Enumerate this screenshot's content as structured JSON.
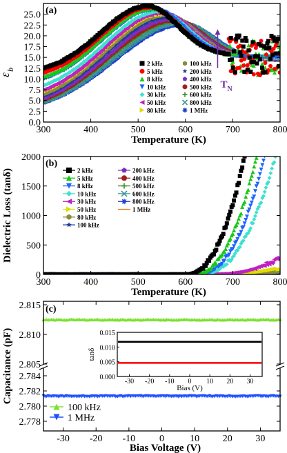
{
  "chart_data": [
    {
      "panel": "(a)",
      "type": "scatter",
      "xlabel": "Temperature (K)",
      "ylabel": "ε_b",
      "ylabel_main": "ε",
      "ylabel_sub": "b",
      "xlim": [
        300,
        800
      ],
      "ylim": [
        0,
        27.5
      ],
      "xticks": [
        300,
        400,
        500,
        600,
        700,
        800
      ],
      "yticks": [
        0.0,
        2.5,
        5.0,
        7.5,
        10.0,
        12.5,
        15.0,
        17.5,
        20.0,
        22.5,
        25.0
      ],
      "annotation": {
        "text": "T",
        "sub": "N",
        "x": 668,
        "arrow_from": 12.5,
        "arrow_to": 21.5,
        "color": "#7030a0"
      },
      "legend_position": "bottom-right",
      "series": [
        {
          "name": "2 kHz",
          "color": "#000000",
          "marker": "square",
          "start": 12.5,
          "peak": 26.9,
          "tpeak": 520,
          "w_low": 140,
          "high": 15.5
        },
        {
          "name": "5 kHz",
          "color": "#ff0000",
          "marker": "circle",
          "start": 11.5,
          "peak": 26.6,
          "tpeak": 525,
          "w_low": 145,
          "high": 15.3
        },
        {
          "name": "8 kHz",
          "color": "#19c819",
          "marker": "triangle-up",
          "start": 10.5,
          "peak": 26.3,
          "tpeak": 530,
          "w_low": 150,
          "high": 15.2
        },
        {
          "name": "10 kHz",
          "color": "#1e64ff",
          "marker": "triangle-down",
          "start": 10.0,
          "peak": 26.1,
          "tpeak": 535,
          "w_low": 155,
          "high": 15.1
        },
        {
          "name": "30 kHz",
          "color": "#40e0d0",
          "marker": "diamond",
          "start": 8.5,
          "peak": 25.6,
          "tpeak": 545,
          "w_low": 165,
          "high": 15.0
        },
        {
          "name": "50 kHz",
          "color": "#c020c0",
          "marker": "triangle-left",
          "start": 7.5,
          "peak": 25.3,
          "tpeak": 550,
          "w_low": 170,
          "high": 14.9
        },
        {
          "name": "80 kHz",
          "color": "#dddd00",
          "marker": "triangle-right",
          "start": 7.0,
          "peak": 25.0,
          "tpeak": 555,
          "w_low": 175,
          "high": 14.8
        },
        {
          "name": "100 kHz",
          "color": "#8b8b3a",
          "marker": "hexagon",
          "start": 6.5,
          "peak": 24.8,
          "tpeak": 560,
          "w_low": 180,
          "high": 14.8
        },
        {
          "name": "200 kHz",
          "color": "#1e3c96",
          "marker": "star",
          "start": 6.0,
          "peak": 24.3,
          "tpeak": 565,
          "w_low": 185,
          "high": 14.7
        },
        {
          "name": "400 kHz",
          "color": "#7b2fbf",
          "marker": "pentagon",
          "start": 5.5,
          "peak": 23.9,
          "tpeak": 572,
          "w_low": 190,
          "high": 14.6
        },
        {
          "name": "500 kHz",
          "color": "#a01e1e",
          "marker": "sphere",
          "start": 5.2,
          "peak": 23.6,
          "tpeak": 577,
          "w_low": 195,
          "high": 14.6
        },
        {
          "name": "600 kHz",
          "color": "#3c8c28",
          "marker": "plus",
          "start": 5.0,
          "peak": 23.4,
          "tpeak": 582,
          "w_low": 198,
          "high": 14.5
        },
        {
          "name": "800 kHz",
          "color": "#3c9696",
          "marker": "x",
          "start": 4.8,
          "peak": 23.0,
          "tpeak": 590,
          "w_low": 200,
          "high": 14.5
        },
        {
          "name": "1 MHz",
          "color": "#1e3cc8",
          "marker": "asterisk",
          "start": 4.5,
          "peak": 22.7,
          "tpeak": 598,
          "w_low": 205,
          "high": 14.4
        }
      ]
    },
    {
      "panel": "(b)",
      "type": "scatter",
      "xlabel": "Temperature (K)",
      "ylabel": "Dielectric Loss   (tanδ)",
      "xlim": [
        300,
        800
      ],
      "ylim": [
        0,
        2000
      ],
      "xticks": [
        300,
        400,
        500,
        600,
        700,
        800
      ],
      "yticks": [
        0,
        500,
        1000,
        1500,
        2000
      ],
      "legend_position": "top-left",
      "series": [
        {
          "name": "2 kHz",
          "color": "#000000",
          "marker": "square",
          "t0": 600,
          "t2000": 725
        },
        {
          "name": "5 kHz",
          "color": "#19c819",
          "marker": "triangle-up",
          "t0": 615,
          "t2000": 750
        },
        {
          "name": "8 kHz",
          "color": "#1e64ff",
          "marker": "triangle-down",
          "t0": 625,
          "t2000": 768
        },
        {
          "name": "10 kHz",
          "color": "#40e0d0",
          "marker": "diamond",
          "t0": 630,
          "t2000": 790
        },
        {
          "name": "30 kHz",
          "color": "#c020c0",
          "marker": "triangle-left",
          "t0": 650,
          "t2000": 1000
        },
        {
          "name": "50 kHz",
          "color": "#dddd00",
          "marker": "triangle-right",
          "t0": 660,
          "t2000": 1150
        },
        {
          "name": "80 kHz",
          "color": "#8b8b3a",
          "marker": "hexagon",
          "t0": 670,
          "t2000": 1300
        },
        {
          "name": "100 kHz",
          "color": "#1e3c96",
          "marker": "star",
          "t0": 675,
          "t2000": 1450
        },
        {
          "name": "200 kHz",
          "color": "#7b2fbf",
          "marker": "pentagon",
          "t0": 685,
          "t2000": 1700
        },
        {
          "name": "400 kHz",
          "color": "#a01e1e",
          "marker": "sphere",
          "t0": 695,
          "t2000": 2000
        },
        {
          "name": "500 kHz",
          "color": "#3c8c28",
          "marker": "plus",
          "t0": 700,
          "t2000": 2200
        },
        {
          "name": "600 kHz",
          "color": "#3c9696",
          "marker": "x",
          "t0": 705,
          "t2000": 2400
        },
        {
          "name": "800 kHz",
          "color": "#1e3cc8",
          "marker": "asterisk",
          "t0": 712,
          "t2000": 2700
        },
        {
          "name": "1 MHz",
          "color": "#e07000",
          "marker": "line",
          "t0": 720,
          "t2000": 3000
        }
      ]
    },
    {
      "panel": "(c)",
      "type": "scatter",
      "xlabel": "Bias Voltage (V)",
      "ylabel": "Capacitance (pF)",
      "xlim": [
        -36,
        36
      ],
      "xticks": [
        -30,
        -20,
        -10,
        0,
        10,
        20,
        30
      ],
      "upper_ylim": [
        2.805,
        2.815
      ],
      "upper_yticks": [
        2.805,
        2.81,
        2.815
      ],
      "lower_ylim": [
        2.777,
        2.785
      ],
      "lower_yticks": [
        2.778,
        2.78,
        2.782,
        2.784
      ],
      "legend_position": "bottom-left",
      "series": [
        {
          "name": "100 kHz",
          "color": "#7fe030",
          "marker": "triangle-up",
          "value": 2.8125
        },
        {
          "name": "1 MHz",
          "color": "#1e50ff",
          "marker": "triangle-down",
          "value": 2.7813
        }
      ],
      "inset": {
        "ylabel": "tanδ",
        "xlabel": "Bias (V)",
        "xlim": [
          -36,
          36
        ],
        "xticks": [
          -30,
          -20,
          -10,
          0,
          10,
          20,
          30
        ],
        "ylim": [
          0,
          0.015
        ],
        "yticks": [
          0.0,
          0.005,
          0.01,
          0.015
        ],
        "ytick_labels": [
          "0.000",
          "0.005",
          "0.010",
          "0.015"
        ],
        "series": [
          {
            "color": "#000000",
            "value": 0.0118
          },
          {
            "color": "#ff0000",
            "value": 0.0046
          }
        ]
      }
    }
  ]
}
